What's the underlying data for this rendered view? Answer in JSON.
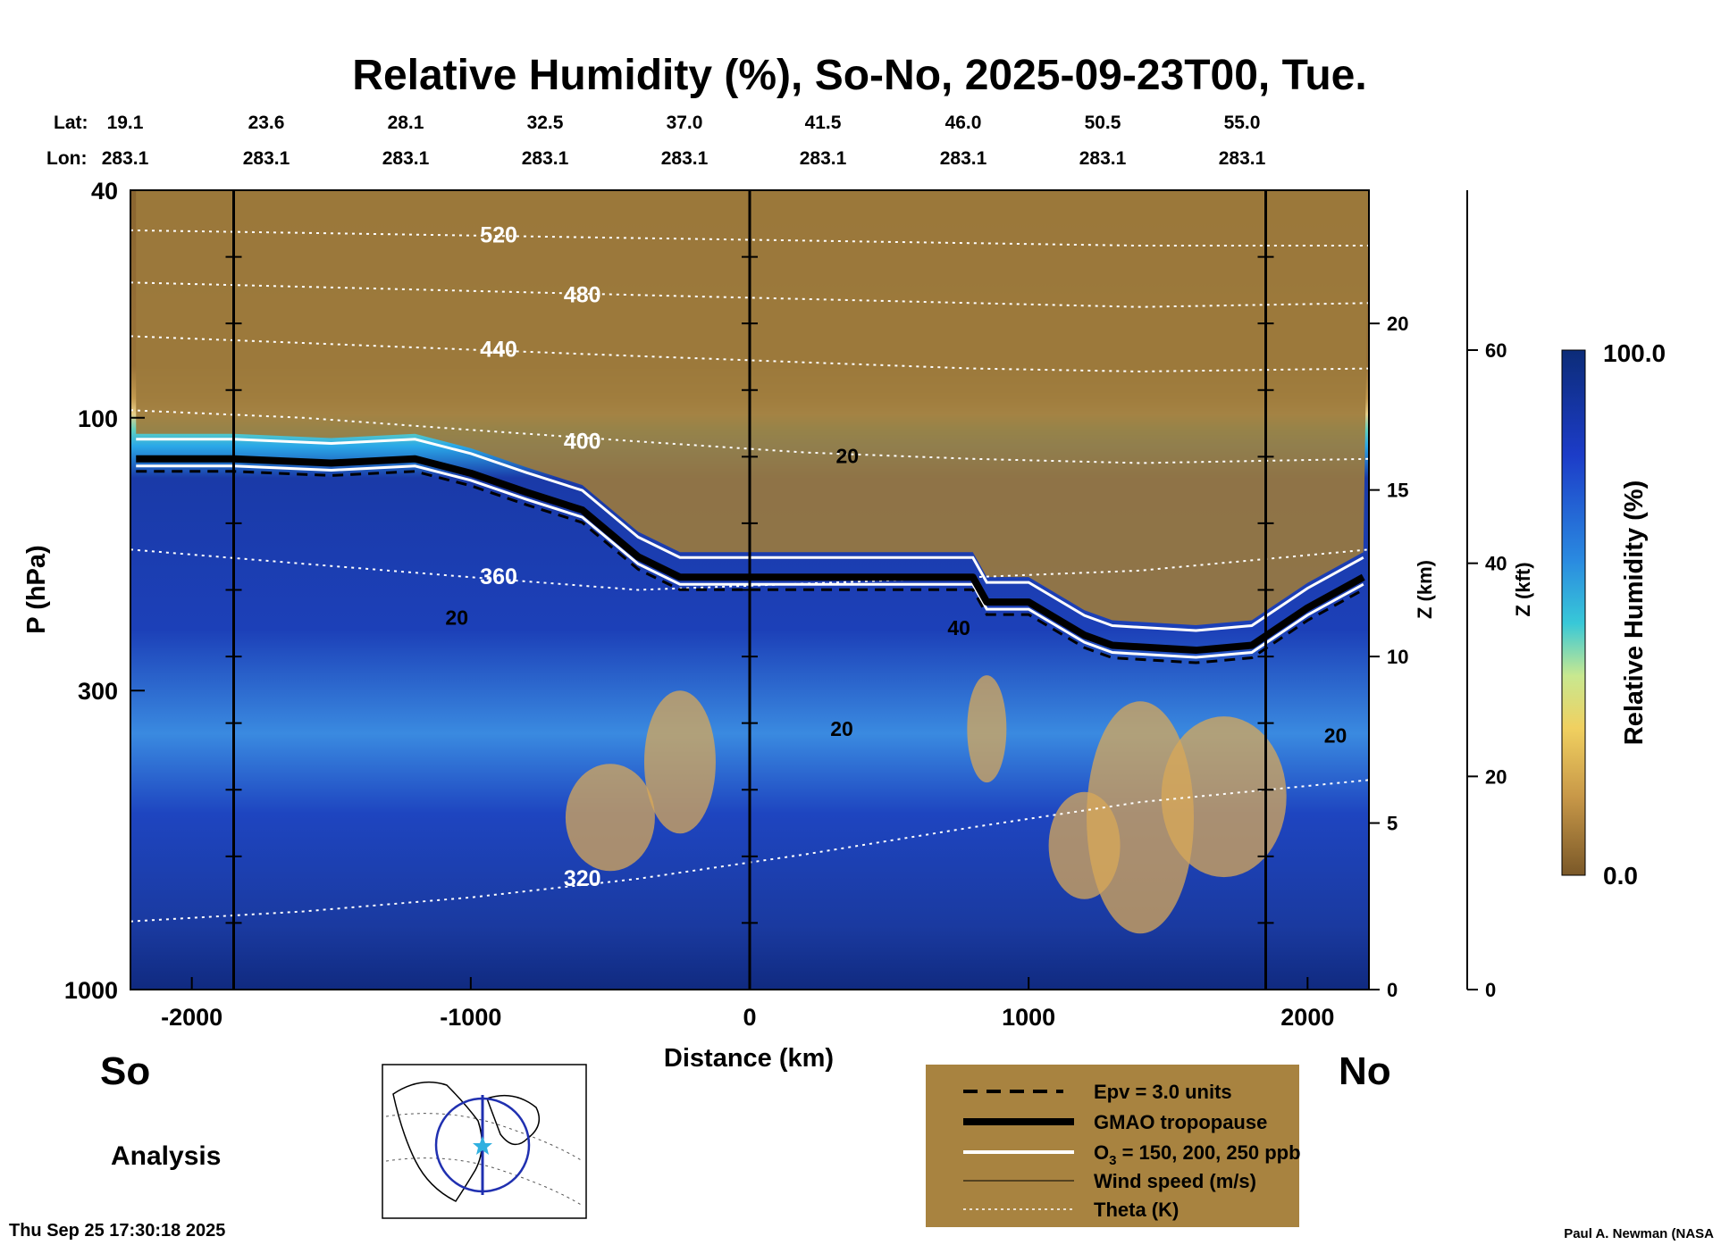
{
  "chart_data": {
    "type": "heatmap",
    "title": "Relative Humidity (%), So-No, 2025-09-23T00, Tue.",
    "xlabel": "Distance (km)",
    "ylabel": "P (hPa)",
    "right_axis_1_label": "Z (km)",
    "right_axis_2_label": "Z (kft)",
    "colorbar_label": "Relative Humidity (%)",
    "colorbar_range": [
      0.0,
      100.0
    ],
    "colorbar_max_label": "100.0",
    "colorbar_min_label": "0.0",
    "xlim": [
      -2220,
      2220
    ],
    "ylim": [
      1000,
      40
    ],
    "x_ticks": [
      -2000,
      -1000,
      0,
      1000,
      2000
    ],
    "y_ticks": [
      40,
      100,
      300,
      1000
    ],
    "z_km_ticks": [
      0,
      5,
      10,
      15,
      20
    ],
    "z_kft_ticks": [
      0,
      20,
      40,
      60
    ],
    "lat_label": "Lat:",
    "lon_label": "Lon:",
    "lats": [
      "19.1",
      "23.6",
      "28.1",
      "32.5",
      "37.0",
      "41.5",
      "46.0",
      "50.5",
      "55.0"
    ],
    "lons": [
      "283.1",
      "283.1",
      "283.1",
      "283.1",
      "283.1",
      "283.1",
      "283.1",
      "283.1",
      "283.1"
    ],
    "vertical_markers_km": [
      -1850,
      0,
      1850
    ],
    "theta_levels": [
      {
        "level": 320,
        "label": "320",
        "pressures": [
          760,
          730,
          690,
          640,
          580,
          520,
          470,
          430
        ]
      },
      {
        "level": 360,
        "label": "360",
        "pressures": [
          170,
          180,
          190,
          200,
          195,
          190,
          185,
          170
        ]
      },
      {
        "level": 400,
        "label": "400",
        "pressures": [
          97,
          100,
          105,
          110,
          115,
          118,
          120,
          118
        ]
      },
      {
        "level": 440,
        "label": "440",
        "pressures": [
          72,
          74,
          76,
          78,
          80,
          82,
          83,
          82
        ]
      },
      {
        "level": 480,
        "label": "480",
        "pressures": [
          58,
          59,
          60,
          61,
          62,
          63,
          64,
          63
        ]
      },
      {
        "level": 520,
        "label": "520",
        "pressures": [
          47,
          47.5,
          48,
          48.5,
          49,
          49.5,
          50,
          50
        ]
      }
    ],
    "tropopause": {
      "name": "GMAO tropopause",
      "x": [
        -2200,
        -1850,
        -1500,
        -1200,
        -1000,
        -800,
        -600,
        -400,
        -250,
        0,
        400,
        800,
        850,
        1000,
        1200,
        1300,
        1600,
        1800,
        2000,
        2200
      ],
      "p": [
        118,
        118,
        120,
        118,
        125,
        135,
        145,
        175,
        190,
        190,
        190,
        190,
        210,
        210,
        240,
        250,
        255,
        250,
        215,
        190
      ]
    },
    "wind_labels": [
      "20",
      "20",
      "20",
      "40",
      "20"
    ],
    "legend": [
      {
        "label": "Epv = 3.0 units",
        "style": "dashed"
      },
      {
        "label": "GMAO tropopause",
        "style": "thick"
      },
      {
        "label_main": "O",
        "label_sub": "3",
        "label_rest": " = 150, 200, 250 ppb",
        "style": "white"
      },
      {
        "label": "Wind speed (m/s)",
        "style": "thin"
      },
      {
        "label": "Theta (K)",
        "style": "dotted"
      }
    ],
    "south_label": "So",
    "north_label": "No",
    "analysis_label": "Analysis"
  },
  "footer": {
    "timestamp": "Thu Sep 25 17:30:18 2025",
    "credit": "Paul A. Newman (NASA"
  },
  "colors": {
    "dry": "#8a6530",
    "wet": "#10307a",
    "legend_bg": "#a88340"
  }
}
